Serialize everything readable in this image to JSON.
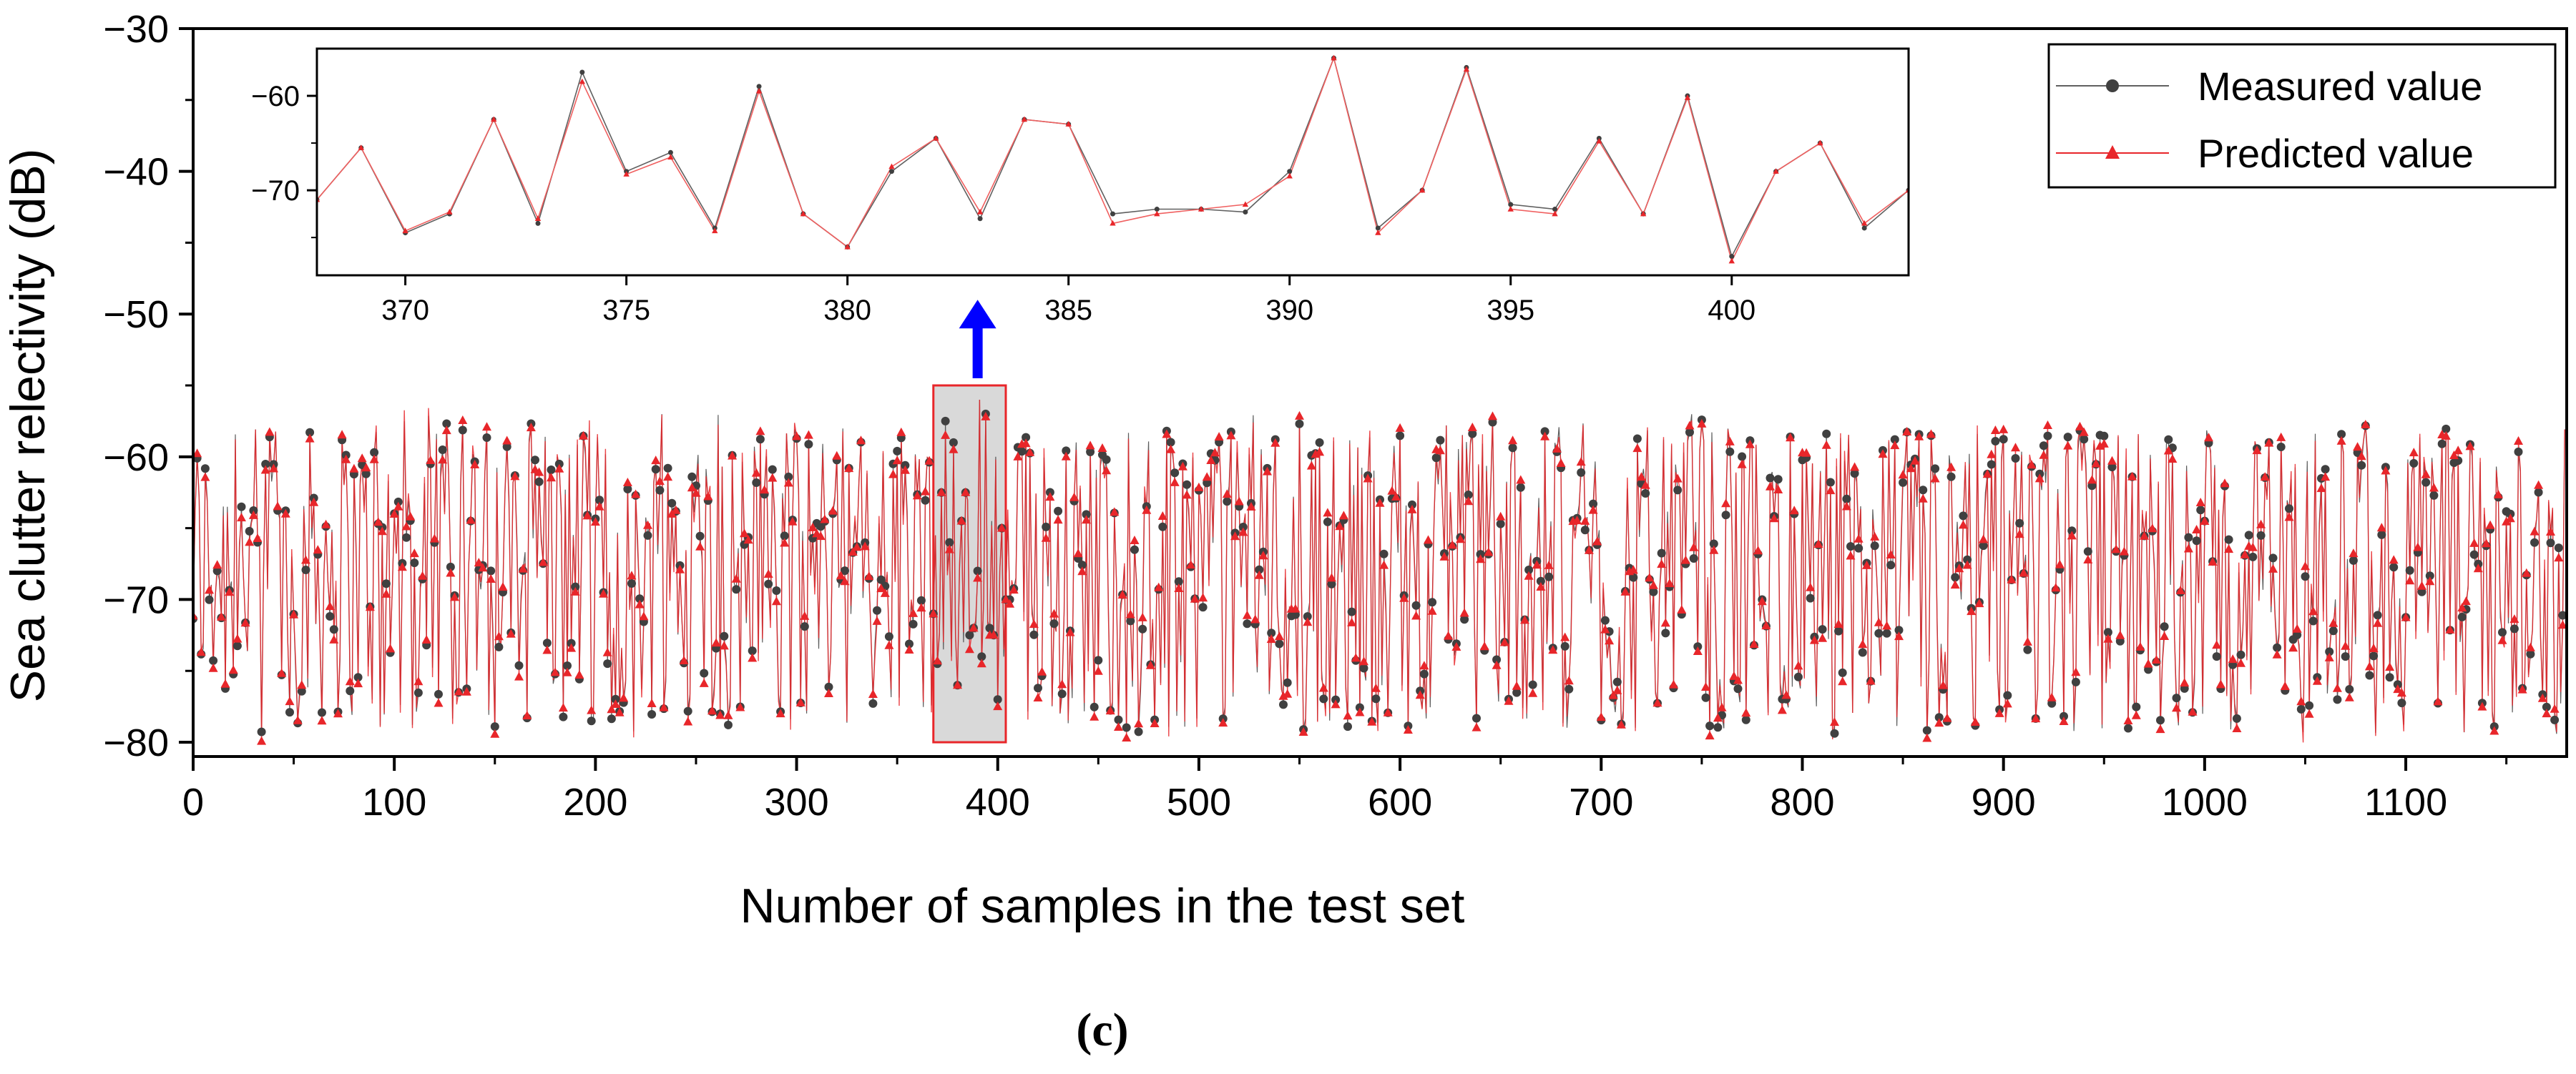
{
  "chart_data": {
    "type": "line",
    "xlabel": "Number of samples in the test set",
    "ylabel": "Sea clutter relectivity (dB)",
    "xlim": [
      0,
      1180
    ],
    "ylim": [
      -81,
      -30
    ],
    "xticks": [
      0,
      100,
      200,
      300,
      400,
      500,
      600,
      700,
      800,
      900,
      1000,
      1100
    ],
    "yticks": [
      -30,
      -40,
      -50,
      -60,
      -70,
      -80
    ],
    "caption": "(c)",
    "legend": {
      "position": "top-right",
      "entries": [
        "Measured value",
        "Predicted value"
      ]
    },
    "series_colors": {
      "measured": "#404040",
      "predicted": "#e8262a"
    },
    "main_series": {
      "description": "1180 test samples; dense sea-clutter fluctuation mostly between -80 and -56 dB",
      "n_samples": 1180,
      "value_range": [
        -80,
        -54
      ]
    },
    "highlight": {
      "x_range": [
        368,
        404
      ],
      "y_range": [
        -80,
        -55
      ],
      "color": "#d9d9d9",
      "border": "#e8262a"
    },
    "arrow": {
      "from": [
        390,
        -54.5
      ],
      "to": [
        390,
        -49
      ],
      "color": "#0000ff"
    },
    "inset": {
      "xlim": [
        368,
        404
      ],
      "ylim": [
        -79,
        -55
      ],
      "xticks": [
        370,
        375,
        380,
        385,
        390,
        395,
        400
      ],
      "yticks": [
        -60,
        -70
      ],
      "x": [
        368,
        369,
        370,
        371,
        372,
        373,
        374,
        375,
        376,
        377,
        378,
        379,
        380,
        381,
        382,
        383,
        384,
        385,
        386,
        387,
        388,
        389,
        390,
        391,
        392,
        393,
        394,
        395,
        396,
        397,
        398,
        399,
        400,
        401,
        402,
        403,
        404
      ],
      "series": [
        {
          "name": "Measured value",
          "values": [
            -71,
            -65.5,
            -74.5,
            -72.5,
            -62.5,
            -73.5,
            -57.5,
            -68,
            -66,
            -74,
            -59,
            -72.5,
            -76,
            -68,
            -64.5,
            -73,
            -62.5,
            -63,
            -72.5,
            -72,
            -72,
            -72.3,
            -68,
            -56,
            -74,
            -70,
            -57,
            -71.5,
            -72,
            -64.5,
            -72.5,
            -60,
            -77,
            -68,
            -65,
            -74,
            -70
          ]
        },
        {
          "name": "Predicted value",
          "values": [
            -71,
            -65.5,
            -74.3,
            -72.3,
            -62.5,
            -73,
            -58.5,
            -68.3,
            -66.5,
            -74.3,
            -59.5,
            -72.5,
            -76,
            -67.5,
            -64.5,
            -72.3,
            -62.5,
            -63,
            -73.5,
            -72.5,
            -72,
            -71.5,
            -68.5,
            -56,
            -74.5,
            -70,
            -57.2,
            -72,
            -72.5,
            -64.8,
            -72.5,
            -60.2,
            -77.5,
            -68,
            -65,
            -73.5,
            -70
          ]
        }
      ]
    }
  }
}
